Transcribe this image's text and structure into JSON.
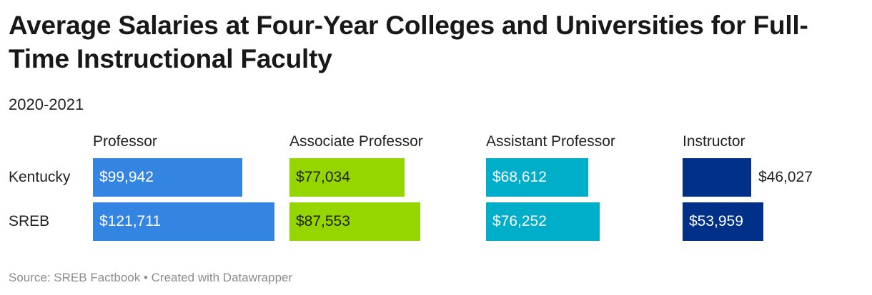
{
  "title": "Average Salaries at Four-Year Colleges and Universities for Full-Time Instructional Faculty",
  "subtitle": "2020-2021",
  "source": "Source: SREB Factbook • Created with Datawrapper",
  "chart_data": {
    "type": "bar",
    "title": "Average Salaries at Four-Year Colleges and Universities for Full-Time Instructional Faculty",
    "subtitle": "2020-2021",
    "categories": [
      "Kentucky",
      "SREB"
    ],
    "series": [
      {
        "name": "Professor",
        "values": [
          99942,
          121711
        ],
        "labels": [
          "$99,942",
          "$121,711"
        ],
        "color": "#3484e2",
        "text_color": "#ffffff"
      },
      {
        "name": "Associate Professor",
        "values": [
          77034,
          87553
        ],
        "labels": [
          "$77,034",
          "$87,553"
        ],
        "color": "#95d600",
        "text_color": "#222222"
      },
      {
        "name": "Assistant Professor",
        "values": [
          68612,
          76252
        ],
        "labels": [
          "$68,612",
          "$76,252"
        ],
        "color": "#00aec9",
        "text_color": "#ffffff"
      },
      {
        "name": "Instructor",
        "values": [
          46027,
          53959
        ],
        "labels": [
          "$46,027",
          "$53,959"
        ],
        "color": "#003087",
        "text_color": "#ffffff"
      }
    ],
    "xlim": [
      0,
      121711
    ],
    "grid": false
  }
}
